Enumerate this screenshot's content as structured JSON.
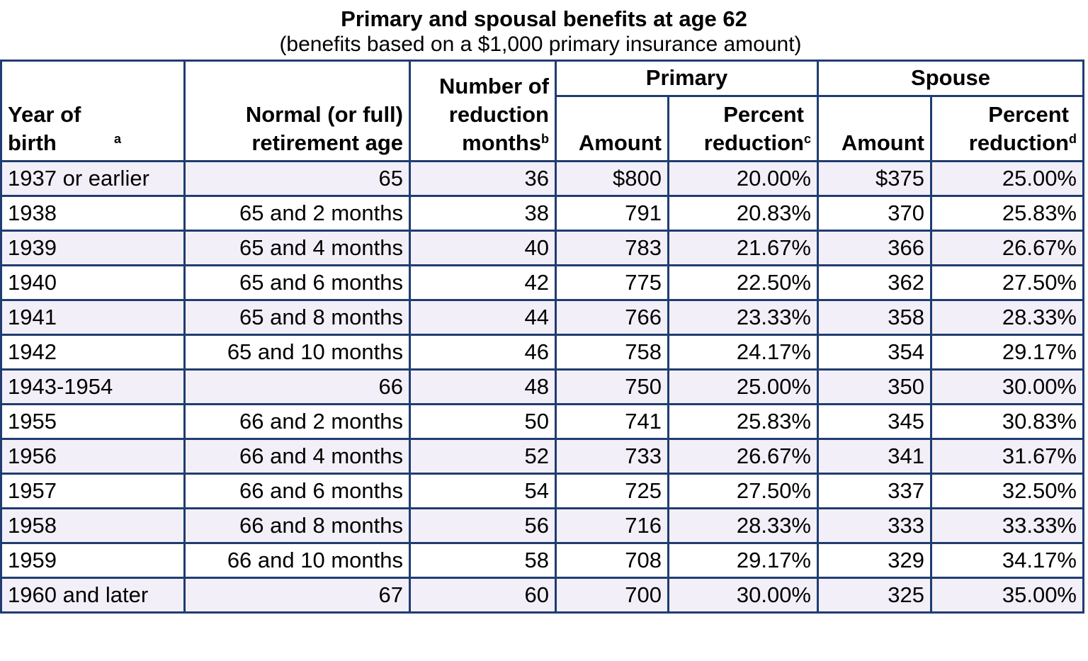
{
  "title": "Primary and spousal benefits at age 62",
  "subtitle": "(benefits based on a $1,000 primary insurance amount)",
  "headers": {
    "year_of_birth": "Year of birth",
    "year_of_birth_note": "a",
    "retirement_age": "Normal (or full) retirement age",
    "reduction_months": "Number of reduction months",
    "reduction_months_note": "b",
    "primary": "Primary",
    "spouse": "Spouse",
    "amount": "Amount",
    "percent_reduction": "Percent reduction",
    "primary_percent_note": "c",
    "spouse_percent_note": "d"
  },
  "rows": [
    {
      "year": "1937 or earlier",
      "age": "65",
      "months": "36",
      "primary_amount": "$800",
      "primary_pct": "20.00%",
      "spouse_amount": "$375",
      "spouse_pct": "25.00%"
    },
    {
      "year": "1938",
      "age": "65 and 2 months",
      "months": "38",
      "primary_amount": "791",
      "primary_pct": "20.83%",
      "spouse_amount": "370",
      "spouse_pct": "25.83%"
    },
    {
      "year": "1939",
      "age": "65 and 4 months",
      "months": "40",
      "primary_amount": "783",
      "primary_pct": "21.67%",
      "spouse_amount": "366",
      "spouse_pct": "26.67%"
    },
    {
      "year": "1940",
      "age": "65 and 6 months",
      "months": "42",
      "primary_amount": "775",
      "primary_pct": "22.50%",
      "spouse_amount": "362",
      "spouse_pct": "27.50%"
    },
    {
      "year": "1941",
      "age": "65 and 8 months",
      "months": "44",
      "primary_amount": "766",
      "primary_pct": "23.33%",
      "spouse_amount": "358",
      "spouse_pct": "28.33%"
    },
    {
      "year": "1942",
      "age": "65 and 10 months",
      "months": "46",
      "primary_amount": "758",
      "primary_pct": "24.17%",
      "spouse_amount": "354",
      "spouse_pct": "29.17%"
    },
    {
      "year": "1943-1954",
      "age": "66",
      "months": "48",
      "primary_amount": "750",
      "primary_pct": "25.00%",
      "spouse_amount": "350",
      "spouse_pct": "30.00%"
    },
    {
      "year": "1955",
      "age": "66 and 2 months",
      "months": "50",
      "primary_amount": "741",
      "primary_pct": "25.83%",
      "spouse_amount": "345",
      "spouse_pct": "30.83%"
    },
    {
      "year": "1956",
      "age": "66 and 4 months",
      "months": "52",
      "primary_amount": "733",
      "primary_pct": "26.67%",
      "spouse_amount": "341",
      "spouse_pct": "31.67%"
    },
    {
      "year": "1957",
      "age": "66 and 6 months",
      "months": "54",
      "primary_amount": "725",
      "primary_pct": "27.50%",
      "spouse_amount": "337",
      "spouse_pct": "32.50%"
    },
    {
      "year": "1958",
      "age": "66 and 8 months",
      "months": "56",
      "primary_amount": "716",
      "primary_pct": "28.33%",
      "spouse_amount": "333",
      "spouse_pct": "33.33%"
    },
    {
      "year": "1959",
      "age": "66 and 10 months",
      "months": "58",
      "primary_amount": "708",
      "primary_pct": "29.17%",
      "spouse_amount": "329",
      "spouse_pct": "34.17%"
    },
    {
      "year": "1960 and later",
      "age": "67",
      "months": "60",
      "primary_amount": "700",
      "primary_pct": "30.00%",
      "spouse_amount": "325",
      "spouse_pct": "35.00%"
    }
  ],
  "colors": {
    "border": "#1f3d70",
    "row_shaded": "#f3eff8",
    "row_plain": "#ffffff"
  }
}
